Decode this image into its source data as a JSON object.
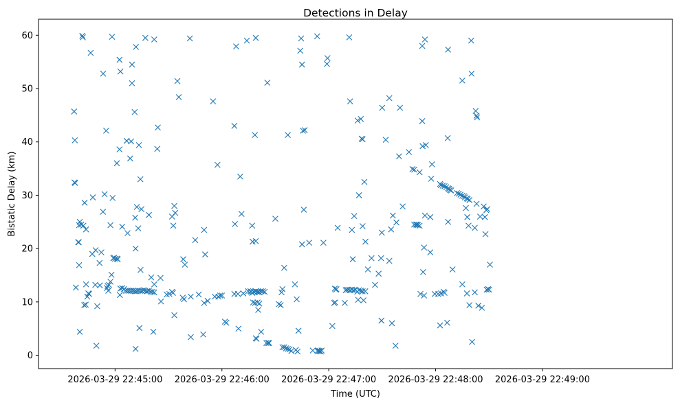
{
  "chart_data": {
    "type": "scatter",
    "title": "Detections in Delay",
    "xlabel": "Time (UTC)",
    "ylabel": "Bistatic Delay (km)",
    "marker": "x",
    "marker_color": "#1f77b4",
    "grid": false,
    "x_unit": "seconds after 2026-03-29 22:44:00 UTC",
    "xlim": [
      17,
      373
    ],
    "ylim": [
      -2.5,
      63
    ],
    "x_ticks": [
      {
        "value": 60,
        "label": "2026-03-29 22:45:00"
      },
      {
        "value": 120,
        "label": "2026-03-29 22:46:00"
      },
      {
        "value": 180,
        "label": "2026-03-29 22:47:00"
      },
      {
        "value": 240,
        "label": "2026-03-29 22:48:00"
      },
      {
        "value": 300,
        "label": "2026-03-29 22:49:00"
      }
    ],
    "y_ticks": [
      {
        "value": 0,
        "label": "0"
      },
      {
        "value": 10,
        "label": "10"
      },
      {
        "value": 20,
        "label": "20"
      },
      {
        "value": 30,
        "label": "30"
      },
      {
        "value": 40,
        "label": "40"
      },
      {
        "value": 50,
        "label": "50"
      },
      {
        "value": 60,
        "label": "60"
      }
    ],
    "points": [
      [
        37,
        45.7
      ],
      [
        37.4,
        40.3
      ],
      [
        37.2,
        32.4
      ],
      [
        37.6,
        32.3
      ],
      [
        38,
        12.7
      ],
      [
        39.3,
        21.2
      ],
      [
        39.6,
        21.2
      ],
      [
        39.8,
        16.9
      ],
      [
        39.8,
        24.4
      ],
      [
        40.2,
        25
      ],
      [
        40.2,
        4.4
      ],
      [
        41,
        24.5
      ],
      [
        41.6,
        59.9
      ],
      [
        41.9,
        59.6
      ],
      [
        42.2,
        24.3
      ],
      [
        42.7,
        9.4
      ],
      [
        42.9,
        28.6
      ],
      [
        43.5,
        9.5
      ],
      [
        43.7,
        23.6
      ],
      [
        43.7,
        13.3
      ],
      [
        44.4,
        11
      ],
      [
        45,
        11.6
      ],
      [
        45.4,
        11.5
      ],
      [
        46.3,
        56.7
      ],
      [
        47.2,
        19
      ],
      [
        47.5,
        29.6
      ],
      [
        48.9,
        13.2
      ],
      [
        49.1,
        19.7
      ],
      [
        49.5,
        1.8
      ],
      [
        50,
        9.2
      ],
      [
        51.3,
        17.3
      ],
      [
        51.5,
        13.1
      ],
      [
        52.3,
        19.3
      ],
      [
        53.2,
        26.9
      ],
      [
        53.3,
        52.8
      ],
      [
        54.1,
        30.2
      ],
      [
        55,
        42.1
      ],
      [
        55.4,
        12.6
      ],
      [
        55.8,
        13
      ],
      [
        56.2,
        12.1
      ],
      [
        56.6,
        13.2
      ],
      [
        57.4,
        24.4
      ],
      [
        57.4,
        13.8
      ],
      [
        58,
        15.1
      ],
      [
        58.3,
        59.7
      ],
      [
        58.6,
        29.5
      ],
      [
        59,
        18.2
      ],
      [
        59.5,
        18.3
      ],
      [
        60,
        18.1
      ],
      [
        61,
        18.1
      ],
      [
        61.5,
        18
      ],
      [
        61,
        36
      ],
      [
        62.5,
        55.4
      ],
      [
        62.5,
        38.6
      ],
      [
        62.7,
        11.3
      ],
      [
        63,
        53.2
      ],
      [
        63,
        12.5
      ],
      [
        64,
        24.1
      ],
      [
        64,
        12.6
      ],
      [
        65,
        12.4
      ],
      [
        66,
        12.1
      ],
      [
        66.5,
        40.2
      ],
      [
        67,
        22.9
      ],
      [
        67,
        12.1
      ],
      [
        68,
        12.1
      ],
      [
        68.5,
        36.9
      ],
      [
        69,
        12.1
      ],
      [
        69,
        40.1
      ],
      [
        69.5,
        54.5
      ],
      [
        69.5,
        51
      ],
      [
        70,
        12.1
      ],
      [
        71,
        12
      ],
      [
        71,
        45.6
      ],
      [
        71.3,
        25.8
      ],
      [
        71.5,
        20
      ],
      [
        71.5,
        1.2
      ],
      [
        71.7,
        57.8
      ],
      [
        72,
        12
      ],
      [
        72.2,
        27.8
      ],
      [
        73,
        12.1
      ],
      [
        73,
        23.8
      ],
      [
        73.4,
        39.4
      ],
      [
        73.7,
        5.1
      ],
      [
        74,
        12.1
      ],
      [
        74.2,
        33
      ],
      [
        74.3,
        16
      ],
      [
        74.8,
        27.4
      ],
      [
        75,
        12.1
      ],
      [
        76,
        12.2
      ],
      [
        77,
        12.1
      ],
      [
        77,
        59.5
      ],
      [
        78,
        12
      ],
      [
        79,
        12.1
      ],
      [
        79,
        26.3
      ],
      [
        80,
        11.9
      ],
      [
        80.3,
        14.6
      ],
      [
        81,
        11.9
      ],
      [
        81.5,
        4.4
      ],
      [
        82,
        11.8
      ],
      [
        82,
        59.2
      ],
      [
        82,
        13.3
      ],
      [
        83.7,
        38.7
      ],
      [
        84,
        42.7
      ],
      [
        85.5,
        14.5
      ],
      [
        85.8,
        10.1
      ],
      [
        89,
        11.4
      ],
      [
        90.5,
        11.5
      ],
      [
        92,
        11.9
      ],
      [
        92,
        26
      ],
      [
        92.5,
        11.7
      ],
      [
        92.7,
        24.3
      ],
      [
        93.3,
        28
      ],
      [
        93.3,
        7.5
      ],
      [
        93.8,
        26.7
      ],
      [
        95,
        51.4
      ],
      [
        95.8,
        48.4
      ],
      [
        98,
        10.8
      ],
      [
        98.3,
        18
      ],
      [
        98.7,
        10.5
      ],
      [
        99.2,
        17
      ],
      [
        102,
        59.4
      ],
      [
        102.5,
        11
      ],
      [
        102.5,
        3.4
      ],
      [
        105,
        21.6
      ],
      [
        107,
        11.4
      ],
      [
        109.5,
        3.9
      ],
      [
        110,
        9.8
      ],
      [
        110,
        23.5
      ],
      [
        110.6,
        18.9
      ],
      [
        112,
        10.2
      ],
      [
        115,
        47.6
      ],
      [
        116,
        11
      ],
      [
        117.5,
        35.7
      ],
      [
        118,
        11
      ],
      [
        119,
        11.2
      ],
      [
        120,
        11.2
      ],
      [
        121.7,
        6.3
      ],
      [
        122.5,
        6.1
      ],
      [
        127,
        11.5
      ],
      [
        127,
        43
      ],
      [
        127.3,
        24.6
      ],
      [
        128,
        57.9
      ],
      [
        129,
        11.5
      ],
      [
        129.3,
        5
      ],
      [
        130.3,
        33.5
      ],
      [
        131,
        26.5
      ],
      [
        132,
        11.6
      ],
      [
        134,
        59
      ],
      [
        134.7,
        12
      ],
      [
        136,
        12
      ],
      [
        136.5,
        11.9
      ],
      [
        137,
        24.3
      ],
      [
        137,
        11.7
      ],
      [
        137.2,
        21.3
      ],
      [
        137.5,
        9.9
      ],
      [
        138,
        11.9
      ],
      [
        138.5,
        41.3
      ],
      [
        138.6,
        9.8
      ],
      [
        139,
        12
      ],
      [
        139,
        21.4
      ],
      [
        139,
        3.2
      ],
      [
        139,
        59.5
      ],
      [
        139.4,
        3.1
      ],
      [
        139.9,
        11.9
      ],
      [
        140,
        9.9
      ],
      [
        140.4,
        8.5
      ],
      [
        140.5,
        11.9
      ],
      [
        141,
        11.8
      ],
      [
        141,
        9.7
      ],
      [
        142,
        4.4
      ],
      [
        142,
        12
      ],
      [
        143,
        12
      ],
      [
        144,
        11.9
      ],
      [
        145,
        2.3
      ],
      [
        145.5,
        51.1
      ],
      [
        146,
        2.3
      ],
      [
        146.5,
        2.3
      ],
      [
        150,
        25.6
      ],
      [
        152,
        9.6
      ],
      [
        153,
        9.4
      ],
      [
        153.5,
        11.8
      ],
      [
        154,
        1.5
      ],
      [
        154,
        12.4
      ],
      [
        155,
        1.5
      ],
      [
        155,
        16.4
      ],
      [
        156,
        1.3
      ],
      [
        157,
        1.2
      ],
      [
        157,
        41.3
      ],
      [
        158,
        1.1
      ],
      [
        159,
        0.8
      ],
      [
        161,
        13.3
      ],
      [
        161.5,
        1
      ],
      [
        162,
        10.5
      ],
      [
        162.5,
        0.7
      ],
      [
        163,
        4.6
      ],
      [
        164,
        57.1
      ],
      [
        164.5,
        59.4
      ],
      [
        165,
        54.5
      ],
      [
        165,
        20.8
      ],
      [
        165.5,
        42.1
      ],
      [
        166,
        27.3
      ],
      [
        166.5,
        42.2
      ],
      [
        169,
        21.1
      ],
      [
        171,
        0.9
      ],
      [
        173.5,
        59.8
      ],
      [
        173.7,
        0.8
      ],
      [
        174,
        0.9
      ],
      [
        174.5,
        0.8
      ],
      [
        175,
        0.8
      ],
      [
        175.5,
        0.7
      ],
      [
        176,
        0.9
      ],
      [
        177,
        21.1
      ],
      [
        179,
        54.6
      ],
      [
        179.3,
        55.7
      ],
      [
        182,
        5.5
      ],
      [
        183,
        9.8
      ],
      [
        183.4,
        12.5
      ],
      [
        183.6,
        9.9
      ],
      [
        184,
        12.3
      ],
      [
        184.3,
        12.4
      ],
      [
        185,
        23.9
      ],
      [
        189,
        9.8
      ],
      [
        189.5,
        12.2
      ],
      [
        190,
        12.3
      ],
      [
        191,
        12.3
      ],
      [
        191.5,
        59.6
      ],
      [
        192,
        47.6
      ],
      [
        192,
        12.2
      ],
      [
        193,
        23.5
      ],
      [
        193,
        12.3
      ],
      [
        193.5,
        18
      ],
      [
        194,
        12.2
      ],
      [
        194.3,
        26.1
      ],
      [
        195,
        12.3
      ],
      [
        196,
        11.9
      ],
      [
        196.2,
        44
      ],
      [
        196.5,
        10.4
      ],
      [
        197,
        12.2
      ],
      [
        197,
        30
      ],
      [
        198,
        12.1
      ],
      [
        198,
        44.3
      ],
      [
        198.5,
        40.6
      ],
      [
        199,
        40.5
      ],
      [
        199,
        12
      ],
      [
        199,
        24.2
      ],
      [
        199.5,
        10.3
      ],
      [
        200,
        32.5
      ],
      [
        200.5,
        12
      ],
      [
        200.6,
        21.3
      ],
      [
        202,
        16.1
      ],
      [
        204,
        18.2
      ],
      [
        206,
        13.2
      ],
      [
        208,
        15.3
      ],
      [
        209.4,
        18.2
      ],
      [
        209.6,
        6.5
      ],
      [
        209.8,
        23
      ],
      [
        210,
        46.4
      ],
      [
        212,
        40.4
      ],
      [
        214,
        17.7
      ],
      [
        214,
        48.2
      ],
      [
        215,
        23.6
      ],
      [
        215.5,
        6
      ],
      [
        216,
        26.2
      ],
      [
        217.5,
        1.8
      ],
      [
        218,
        24.9
      ],
      [
        219.5,
        37.3
      ],
      [
        220,
        46.4
      ],
      [
        221.5,
        27.9
      ],
      [
        225,
        38.1
      ],
      [
        227,
        34.9
      ],
      [
        228,
        34.8
      ],
      [
        228,
        24.5
      ],
      [
        229,
        24.5
      ],
      [
        229.5,
        24.5
      ],
      [
        230,
        24.4
      ],
      [
        231,
        24.3
      ],
      [
        231,
        34.3
      ],
      [
        231.5,
        11.5
      ],
      [
        232.5,
        43.9
      ],
      [
        232.5,
        58
      ],
      [
        232.7,
        39.2
      ],
      [
        233,
        15.6
      ],
      [
        233.5,
        20.2
      ],
      [
        233.5,
        11.2
      ],
      [
        234,
        59.2
      ],
      [
        234,
        26.2
      ],
      [
        234.5,
        39.4
      ],
      [
        237,
        25.9
      ],
      [
        237,
        19.3
      ],
      [
        237.5,
        33.1
      ],
      [
        238,
        35.8
      ],
      [
        239.5,
        11.5
      ],
      [
        241.5,
        11.5
      ],
      [
        242.5,
        5.6
      ],
      [
        242.5,
        32.1
      ],
      [
        243,
        11.6
      ],
      [
        243,
        31.9
      ],
      [
        244,
        31.8
      ],
      [
        244.5,
        11.9
      ],
      [
        245,
        31.7
      ],
      [
        245,
        11.7
      ],
      [
        246,
        31.5
      ],
      [
        246.5,
        6.1
      ],
      [
        246.8,
        40.7
      ],
      [
        247,
        57.3
      ],
      [
        247,
        31.3
      ],
      [
        247,
        25
      ],
      [
        247.5,
        31.2
      ],
      [
        248,
        31
      ],
      [
        248.7,
        30.9
      ],
      [
        249.5,
        16.1
      ],
      [
        252,
        30.4
      ],
      [
        253,
        30.3
      ],
      [
        254,
        30.1
      ],
      [
        255,
        51.5
      ],
      [
        255,
        29.9
      ],
      [
        255,
        13.3
      ],
      [
        256,
        29.8
      ],
      [
        256.5,
        29.6
      ],
      [
        257,
        27.6
      ],
      [
        257.5,
        29.4
      ],
      [
        257.6,
        11.6
      ],
      [
        257.8,
        25.9
      ],
      [
        258,
        29.3
      ],
      [
        258.5,
        24.3
      ],
      [
        259,
        9.4
      ],
      [
        259,
        29.1
      ],
      [
        260,
        59
      ],
      [
        260.2,
        52.8
      ],
      [
        260.5,
        2.5
      ],
      [
        262,
        23.9
      ],
      [
        262,
        11.8
      ],
      [
        262.5,
        45.8
      ],
      [
        263,
        28.4
      ],
      [
        263,
        44.9
      ],
      [
        263.3,
        44.6
      ],
      [
        264,
        9.3
      ],
      [
        265,
        26
      ],
      [
        266,
        8.9
      ],
      [
        267,
        27.9
      ],
      [
        267.7,
        25.9
      ],
      [
        268,
        22.7
      ],
      [
        268.5,
        27.2
      ],
      [
        268.7,
        12.3
      ],
      [
        269,
        27.4
      ],
      [
        269.5,
        12.4
      ],
      [
        270,
        12.3
      ],
      [
        270.5,
        17
      ]
    ]
  }
}
